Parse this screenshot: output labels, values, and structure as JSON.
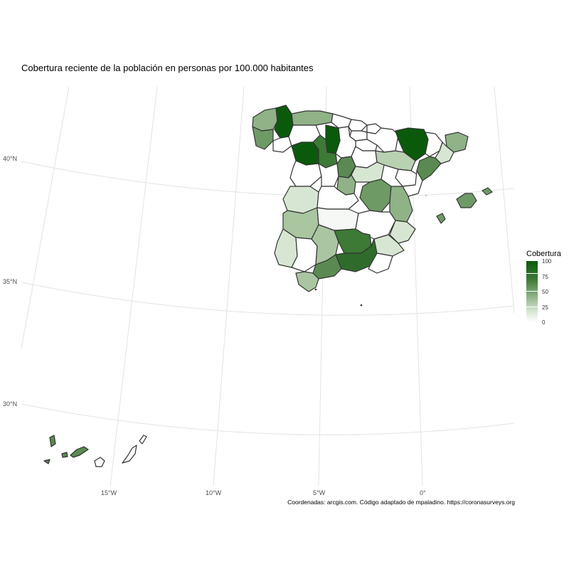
{
  "title": "Cobertura reciente de la población en personas por 100.000 habitantes",
  "caption": "Coordenadas: arcgis.com. Código adaptado de mpaladino. https://coronasurveys.org",
  "legend": {
    "title": "Cobertura",
    "ticks": [
      "100",
      "75",
      "50",
      "25",
      "0"
    ],
    "color_high": "#0b5a0b",
    "color_low": "#ffffff"
  },
  "axes": {
    "lat_labels": [
      "40°N",
      "35°N",
      "30°N"
    ],
    "lon_labels": [
      "15°W",
      "10°W",
      "5°W",
      "0°"
    ]
  }
}
